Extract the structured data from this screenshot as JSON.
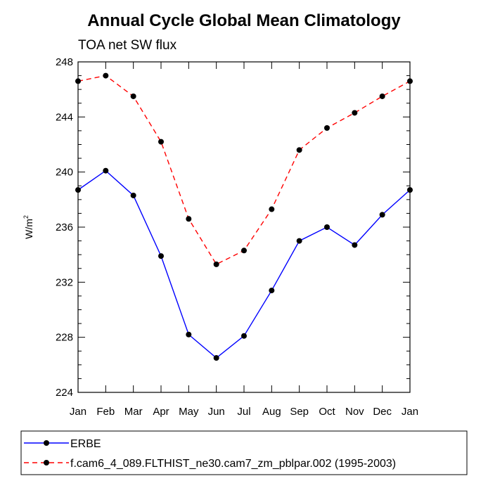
{
  "chart_data": {
    "type": "line",
    "title": "Annual Cycle Global Mean Climatology",
    "subtitle": "TOA net SW flux",
    "xlabel": "",
    "ylabel": "W/m",
    "ylabel_superscript": "2",
    "categories": [
      "Jan",
      "Feb",
      "Mar",
      "Apr",
      "May",
      "Jun",
      "Jul",
      "Aug",
      "Sep",
      "Oct",
      "Nov",
      "Dec",
      "Jan"
    ],
    "ylim": [
      224,
      248
    ],
    "yticks": [
      224,
      228,
      232,
      236,
      240,
      244,
      248
    ],
    "ytick_labels": [
      "224",
      "228",
      "232",
      "236",
      "240",
      "244",
      "248"
    ],
    "series": [
      {
        "name": "ERBE",
        "color": "#0000ff",
        "style": "solid",
        "values": [
          238.7,
          240.1,
          238.3,
          233.9,
          228.2,
          226.5,
          228.1,
          231.4,
          235.0,
          236.0,
          234.7,
          236.9,
          238.7
        ]
      },
      {
        "name": "f.cam6_4_089.FLTHIST_ne30.cam7_zm_pblpar.002 (1995-2003)",
        "color": "#ff0000",
        "style": "dashed",
        "values": [
          246.6,
          247.0,
          245.5,
          242.2,
          236.6,
          233.3,
          234.3,
          237.3,
          241.6,
          243.2,
          244.3,
          245.5,
          246.6
        ]
      }
    ],
    "legend_position": "bottom"
  }
}
